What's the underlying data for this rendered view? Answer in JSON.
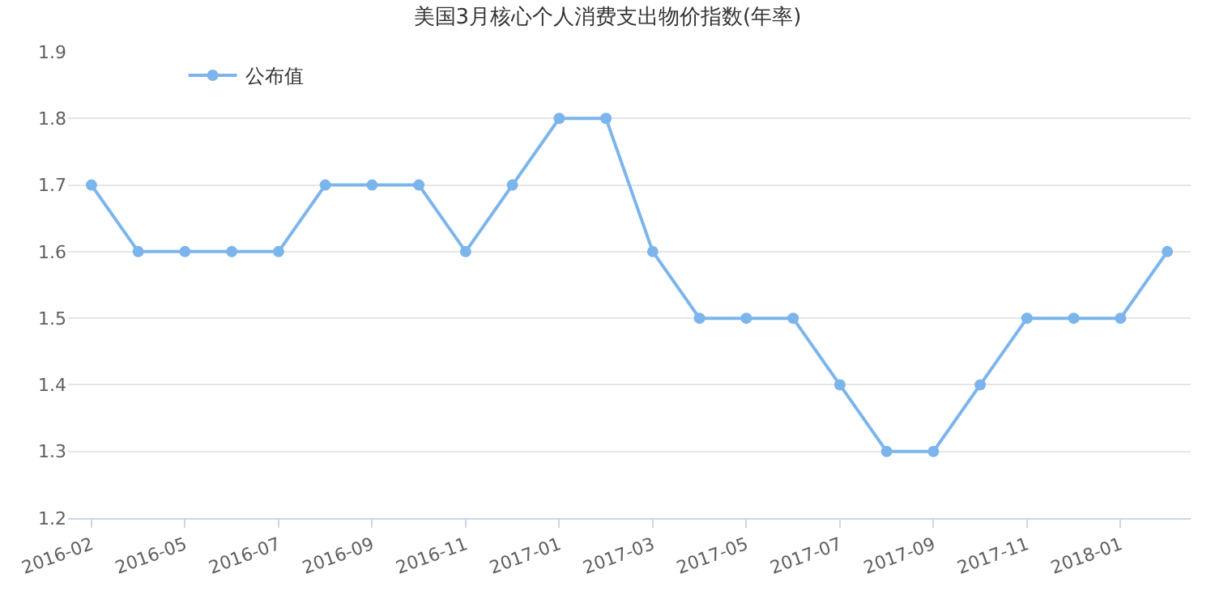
{
  "chart_data": {
    "type": "line",
    "title": "美国3月核心个人消费支出物价指数(年率)",
    "categories": [
      "2016-02",
      null,
      "2016-05",
      null,
      "2016-07",
      null,
      "2016-09",
      null,
      "2016-11",
      null,
      "2017-01",
      null,
      "2017-03",
      null,
      "2017-05",
      null,
      "2017-07",
      null,
      "2017-09",
      null,
      "2017-11",
      null,
      "2018-01",
      null
    ],
    "series": [
      {
        "name": "公布值",
        "color": "#7cb5ec",
        "values": [
          1.7,
          1.6,
          1.6,
          1.6,
          1.6,
          1.7,
          1.7,
          1.7,
          1.6,
          1.7,
          1.8,
          1.8,
          1.6,
          1.5,
          1.5,
          1.5,
          1.4,
          1.3,
          1.3,
          1.4,
          1.5,
          1.5,
          1.5,
          1.6
        ]
      }
    ],
    "ylim": [
      1.2,
      1.9
    ],
    "yticks": [
      1.2,
      1.3,
      1.4,
      1.5,
      1.6,
      1.7,
      1.8,
      1.9
    ],
    "grid": "y",
    "legend": "top left",
    "marker": "circle",
    "line_style": "solid"
  }
}
